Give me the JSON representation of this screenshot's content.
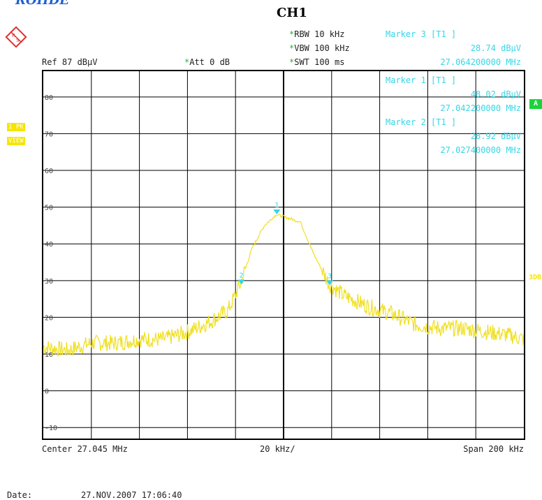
{
  "brand_text": "ROHDE",
  "channel_title": "CH1",
  "settings": {
    "rbw": "RBW 10 kHz",
    "vbw": "VBW 100 kHz",
    "swt": "SWT 100 ms",
    "ref": "Ref  87 dBµV",
    "att": "Att  0 dB",
    "star": "*"
  },
  "markers": [
    {
      "label": "Marker 3 [T1 ]",
      "level": "28.74 dBµV",
      "freq": "27.064200000 MHz"
    },
    {
      "label": "Marker 1 [T1 ]",
      "level": "48.02 dBµV",
      "freq": "27.042200000 MHz"
    },
    {
      "label": "Marker 2 [T1 ]",
      "level": "28.92 dBµV",
      "freq": "27.027400000 MHz"
    }
  ],
  "side_badges": {
    "trace": "1 PK",
    "mode": "VIEW",
    "a": "A",
    "three_db": "3DB"
  },
  "footer": {
    "center": "Center 27.045 MHz",
    "per_div": "20 kHz/",
    "span": "Span 200 kHz",
    "date_label": "Date:",
    "date_value": "27.NOV.2007  17:06:40"
  },
  "colors": {
    "trace": "#f0e020",
    "marker": "#35d6e6",
    "grid": "#000000"
  },
  "chart_data": {
    "type": "line",
    "title": "CH1",
    "xlabel": "",
    "ylabel": "",
    "xlim": [
      26.945,
      27.145
    ],
    "ylim": [
      -13,
      87
    ],
    "y_ticks": [
      80,
      70,
      60,
      50,
      40,
      30,
      20,
      10,
      0,
      -10
    ],
    "y_tick_labels": [
      "80",
      "70",
      "60",
      "50",
      "40",
      "30",
      "20",
      "10",
      "0",
      "-10"
    ],
    "grid": true,
    "series": [
      {
        "x": [
          26.945,
          26.955,
          26.965,
          26.975,
          26.985,
          26.995,
          27.005,
          27.015,
          27.022,
          27.027,
          27.032,
          27.037,
          27.042,
          27.047,
          27.052,
          27.057,
          27.064,
          27.07,
          27.08,
          27.09,
          27.1,
          27.11,
          27.12,
          27.13,
          27.14,
          27.145
        ],
        "values": [
          12,
          11,
          13,
          13,
          14,
          14,
          16,
          19,
          22,
          29,
          39,
          45,
          48,
          47,
          46,
          38,
          29,
          26,
          23,
          21,
          18,
          17,
          17,
          16,
          15,
          14
        ]
      }
    ],
    "markers": [
      {
        "id": "1",
        "x": 27.0422,
        "y": 48.02
      },
      {
        "id": "2",
        "x": 27.0274,
        "y": 28.92
      },
      {
        "id": "3",
        "x": 27.0642,
        "y": 28.74
      }
    ]
  }
}
